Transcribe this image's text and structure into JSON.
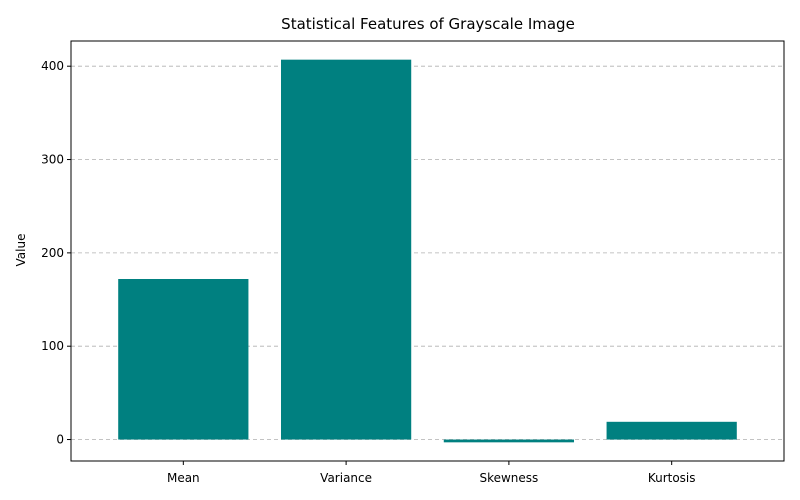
{
  "chart_data": {
    "type": "bar",
    "title": "Statistical Features of Grayscale Image",
    "xlabel": "",
    "ylabel": "Value",
    "categories": [
      "Mean",
      "Variance",
      "Skewness",
      "Kurtosis"
    ],
    "values": [
      172,
      407,
      -3,
      19
    ],
    "ylim": [
      -23,
      427
    ],
    "yticks": [
      0,
      100,
      200,
      300,
      400
    ],
    "grid": "y",
    "bar_color": "#008080"
  }
}
